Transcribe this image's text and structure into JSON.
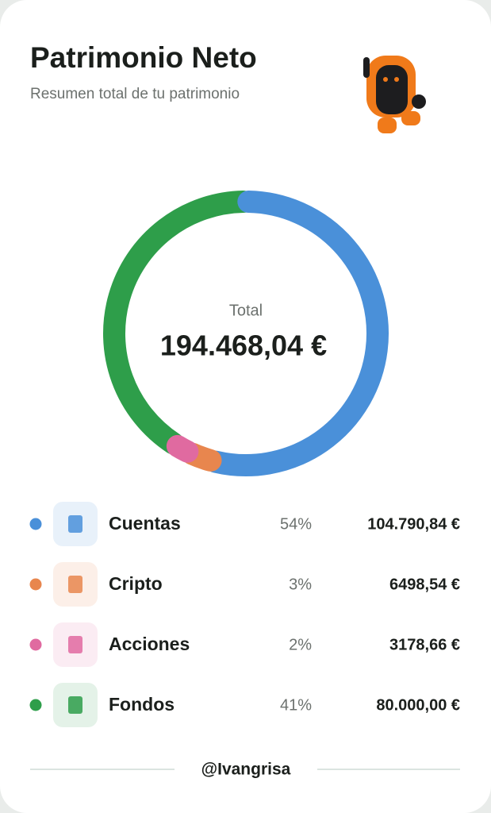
{
  "header": {
    "title": "Patrimonio Neto",
    "subtitle": "Resumen total de tu patrimonio"
  },
  "chart_data": {
    "type": "donut",
    "center_label": "Total",
    "center_value": "194.468,04 €",
    "categories": [
      "Cuentas",
      "Cripto",
      "Acciones",
      "Fondos"
    ],
    "values": [
      54,
      3,
      2,
      41
    ],
    "value_labels": [
      "54%",
      "3%",
      "2%",
      "41%"
    ],
    "colors": [
      "#4a90d9",
      "#e8864e",
      "#e06aa0",
      "#2e9e4a"
    ],
    "amounts": [
      "104.790,84 €",
      "6498,54 €",
      "3178,66 €",
      "80.000,00 €"
    ]
  },
  "footer": "@Ivangrisa"
}
